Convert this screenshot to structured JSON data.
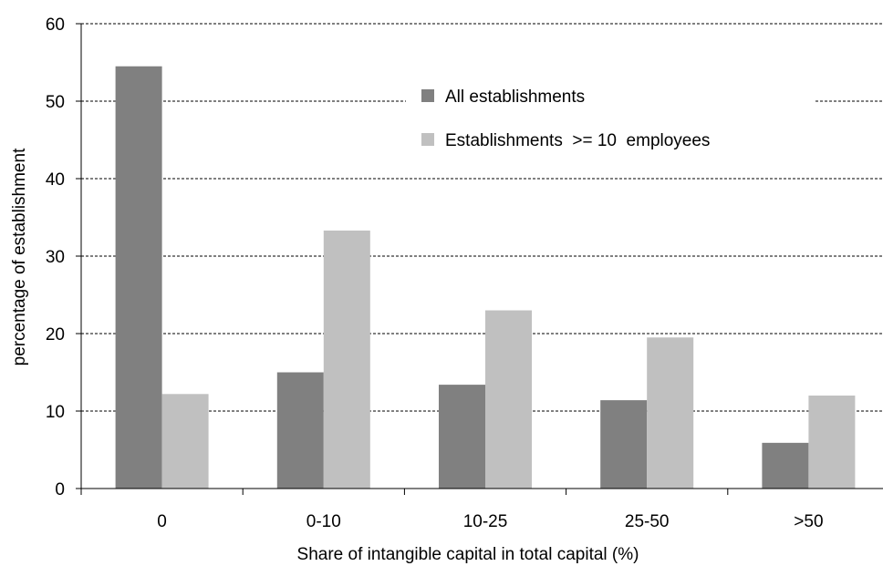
{
  "chart_data": {
    "type": "bar",
    "title": "",
    "xlabel": "Share of intangible capital in total capital (%)",
    "ylabel": "percentage of establishment",
    "categories": [
      "0",
      "0-10",
      "10-25",
      "25-50",
      ">50"
    ],
    "series": [
      {
        "name": "All establishments",
        "color": "#808080",
        "values": [
          54.5,
          15.0,
          13.4,
          11.4,
          5.9
        ]
      },
      {
        "name": "Establishments  >= 10  employees",
        "color": "#c0c0c0",
        "values": [
          12.2,
          33.3,
          23.0,
          19.5,
          12.0
        ]
      }
    ],
    "ylim": [
      0,
      60
    ],
    "yticks": [
      0,
      10,
      20,
      30,
      40,
      50,
      60
    ],
    "grid": "horizontal-dashed",
    "legend_position": "top-right"
  }
}
